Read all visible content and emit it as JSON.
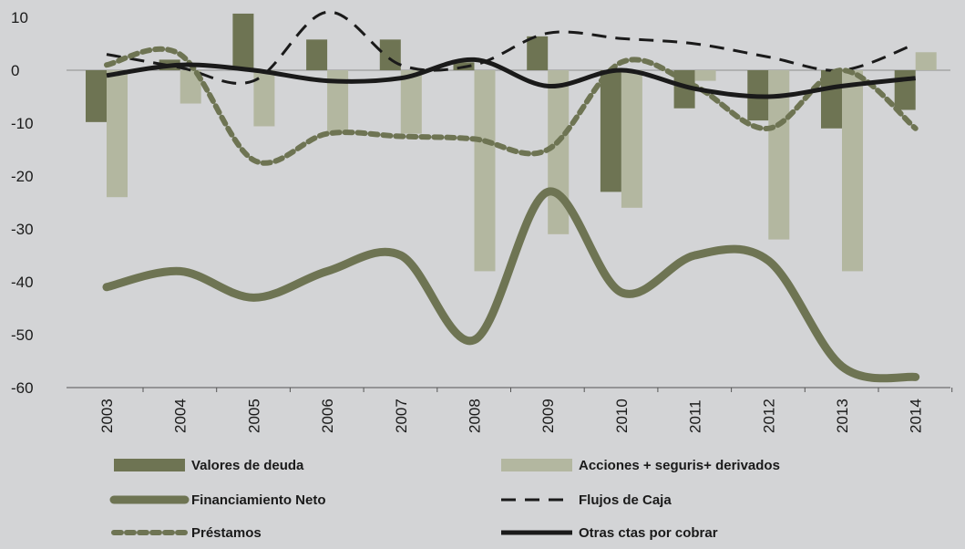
{
  "chart_data": {
    "type": "bar",
    "title": "",
    "xlabel": "",
    "ylabel": "",
    "ylim": [
      -60,
      10
    ],
    "yticks": [
      10,
      0,
      -10,
      -20,
      -30,
      -40,
      -50,
      -60
    ],
    "categories": [
      "2003",
      "2004",
      "2005",
      "2006",
      "2007",
      "2008",
      "2009",
      "2010",
      "2011",
      "2012",
      "2013",
      "2014"
    ],
    "grid": false,
    "legend_position": "bottom",
    "series": [
      {
        "name": "Valores de deuda",
        "kind": "bar",
        "color": "#6e7453",
        "values": [
          -9.8,
          2,
          10.7,
          5.8,
          5.8,
          1.5,
          6.4,
          -23,
          -7.2,
          -9.5,
          -11,
          -7.5
        ]
      },
      {
        "name": "Acciones + seguris+ derivados",
        "kind": "bar",
        "color": "#b3b7a0",
        "values": [
          -24,
          -6.3,
          -10.6,
          -12,
          -12,
          -38,
          -31,
          -26,
          -2,
          -32,
          -38,
          3.4
        ]
      },
      {
        "name": "Financiamiento Neto",
        "kind": "line",
        "style": "solid-thick",
        "color": "#6e7453",
        "values": [
          -41,
          -38,
          -43,
          -38,
          -35,
          -51,
          -23,
          -42,
          -35,
          -36,
          -56,
          -58
        ]
      },
      {
        "name": "Flujos de Caja",
        "kind": "line",
        "style": "dashed",
        "color": "#1a1a1a",
        "values": [
          3,
          0.5,
          -2,
          11,
          1,
          1,
          7,
          6,
          5,
          2.5,
          0,
          5
        ]
      },
      {
        "name": "Préstamos",
        "kind": "line",
        "style": "dotted-thick",
        "color": "#6e7453",
        "values": [
          1,
          3,
          -17,
          -12,
          -12.5,
          -13,
          -15,
          1.5,
          -3,
          -11,
          0,
          -11
        ]
      },
      {
        "name": "Otras ctas por cobrar",
        "kind": "line",
        "style": "solid",
        "color": "#1a1a1a",
        "values": [
          -1,
          1,
          0,
          -2,
          -1.5,
          2,
          -3,
          0,
          -3.5,
          -5,
          -3,
          -1.5
        ]
      }
    ]
  }
}
